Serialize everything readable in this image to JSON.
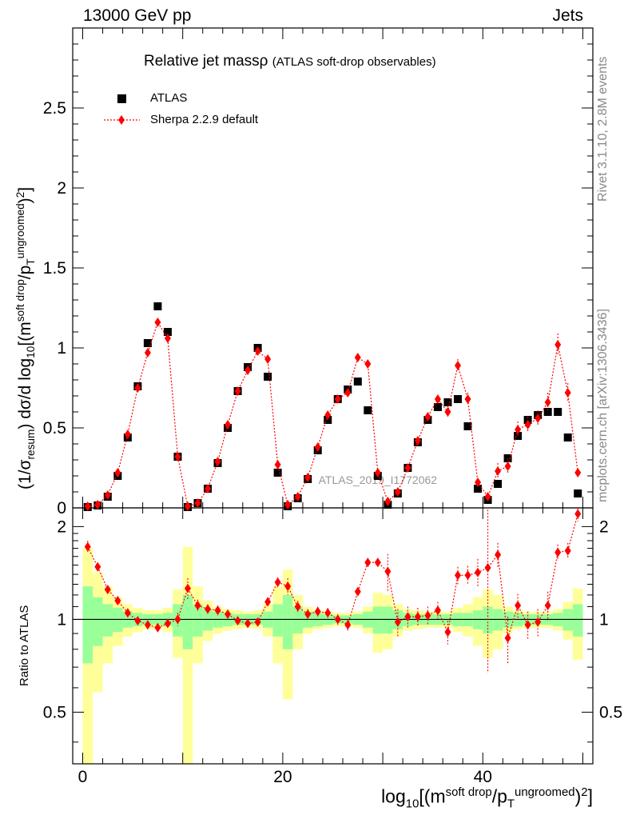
{
  "header": {
    "energy_label": "13000 GeV pp",
    "process_label": "Jets"
  },
  "side_labels": {
    "rivet": "Rivet 3.1.10,  2.8M events",
    "mcplots": "mcplots.cern.ch [arXiv:1306.3436]"
  },
  "watermark": "ATLAS_2019_I1772062",
  "chart_data": {
    "type": "scatter",
    "title": "Relative jet massρ",
    "subtitle": "(ATLAS soft-drop observables)",
    "ylabel_parts": {
      "a": "(1/σ",
      "a_sub": "resum",
      "b": ") dσ/d log",
      "b_sub": "10",
      "c": "[(m",
      "c_sup": "soft drop",
      "d": "/p",
      "d_sub": "T",
      "d_sup": "ungroomed",
      "e": ")",
      "e_sup": "2",
      "f": "]"
    },
    "xlabel_parts": {
      "a": "log",
      "a_sub": "10",
      "b": "[(m",
      "b_sup": "soft drop",
      "c": "/p",
      "c_sub": "T",
      "c_sup": "ungroomed",
      "d": ")",
      "d_sup": "2",
      "e": "]"
    },
    "ratio_ylabel": "Ratio to ATLAS",
    "xlim": [
      -1,
      51
    ],
    "ylim": [
      0,
      3.0
    ],
    "ratio_ylim": [
      0.34,
      2.3
    ],
    "x_ticks": [
      "0",
      "20",
      "40"
    ],
    "y_ticks": [
      "0",
      "0.5",
      "1",
      "1.5",
      "2",
      "2.5"
    ],
    "ratio_ticks": [
      "0.5",
      "1",
      "2"
    ],
    "legend": {
      "data_label": "ATLAS",
      "mc_label": "Sherpa 2.2.9 default",
      "position": "top-left"
    },
    "colors": {
      "data": "#000000",
      "mc": "#ff0000",
      "band_inner": "#99ff99",
      "band_outer": "#ffff99"
    },
    "x": [
      0.5,
      1.5,
      2.5,
      3.5,
      4.5,
      5.5,
      6.5,
      7.5,
      8.5,
      9.5,
      10.5,
      11.5,
      12.5,
      13.5,
      14.5,
      15.5,
      16.5,
      17.5,
      18.5,
      19.5,
      20.5,
      21.5,
      22.5,
      23.5,
      24.5,
      25.5,
      26.5,
      27.5,
      28.5,
      29.5,
      30.5,
      31.5,
      32.5,
      33.5,
      34.5,
      35.5,
      36.5,
      37.5,
      38.5,
      39.5,
      40.5,
      41.5,
      42.5,
      43.5,
      44.5,
      45.5,
      46.5,
      47.5,
      48.5,
      49.5
    ],
    "series": [
      {
        "name": "ATLAS",
        "values": [
          0.005,
          0.015,
          0.07,
          0.2,
          0.44,
          0.76,
          1.03,
          1.26,
          1.1,
          0.32,
          0.005,
          0.03,
          0.12,
          0.28,
          0.5,
          0.73,
          0.88,
          1.0,
          0.82,
          0.22,
          0.01,
          0.06,
          0.18,
          0.36,
          0.55,
          0.68,
          0.74,
          0.79,
          0.61,
          0.2,
          0.02,
          0.09,
          0.25,
          0.41,
          0.55,
          0.63,
          0.66,
          0.68,
          0.51,
          0.12,
          0.05,
          0.15,
          0.31,
          0.45,
          0.55,
          0.58,
          0.6,
          0.6,
          0.44,
          0.09
        ]
      },
      {
        "name": "Sherpa 2.2.9 default",
        "values": [
          0.01,
          0.02,
          0.08,
          0.22,
          0.46,
          0.75,
          0.97,
          1.16,
          1.06,
          0.32,
          0.01,
          0.03,
          0.12,
          0.29,
          0.52,
          0.73,
          0.86,
          0.98,
          0.93,
          0.27,
          0.02,
          0.07,
          0.19,
          0.38,
          0.58,
          0.68,
          0.72,
          0.94,
          0.9,
          0.22,
          0.04,
          0.1,
          0.25,
          0.42,
          0.57,
          0.68,
          0.6,
          0.89,
          0.68,
          0.16,
          0.07,
          0.23,
          0.26,
          0.49,
          0.52,
          0.56,
          0.66,
          1.02,
          0.72,
          0.22
        ],
        "errors": [
          0.003,
          0.004,
          0.01,
          0.01,
          0.015,
          0.02,
          0.02,
          0.025,
          0.025,
          0.015,
          0.002,
          0.004,
          0.01,
          0.012,
          0.015,
          0.02,
          0.02,
          0.02,
          0.02,
          0.012,
          0.003,
          0.006,
          0.01,
          0.015,
          0.02,
          0.02,
          0.02,
          0.025,
          0.025,
          0.015,
          0.004,
          0.01,
          0.015,
          0.02,
          0.03,
          0.03,
          0.04,
          0.04,
          0.04,
          0.03,
          0.02,
          0.05,
          0.05,
          0.05,
          0.05,
          0.05,
          0.06,
          0.07,
          0.06,
          0.03
        ]
      }
    ],
    "ratio": {
      "values": [
        1.72,
        1.48,
        1.25,
        1.15,
        1.05,
        0.99,
        0.96,
        0.94,
        0.97,
        1.0,
        1.26,
        1.11,
        1.08,
        1.07,
        1.04,
        0.99,
        0.97,
        0.98,
        1.14,
        1.32,
        1.28,
        1.1,
        1.04,
        1.06,
        1.05,
        1.0,
        0.96,
        1.23,
        1.53,
        1.53,
        1.43,
        0.98,
        1.02,
        1.02,
        1.03,
        1.07,
        0.91,
        1.39,
        1.39,
        1.42,
        1.47,
        1.62,
        0.87,
        1.11,
        0.96,
        0.98,
        1.11,
        1.65,
        1.67,
        2.2
      ],
      "err": [
        0.08,
        0.05,
        0.04,
        0.03,
        0.03,
        0.03,
        0.03,
        0.03,
        0.03,
        0.05,
        0.1,
        0.05,
        0.04,
        0.04,
        0.03,
        0.03,
        0.03,
        0.03,
        0.04,
        0.05,
        0.08,
        0.05,
        0.04,
        0.04,
        0.04,
        0.04,
        0.04,
        0.04,
        0.05,
        0.05,
        0.2,
        0.1,
        0.08,
        0.07,
        0.07,
        0.07,
        0.08,
        0.09,
        0.1,
        0.15,
        0.8,
        0.15,
        0.15,
        0.1,
        0.1,
        0.1,
        0.12,
        0.1,
        0.1,
        0.12
      ],
      "band_inner": [
        0.28,
        0.18,
        0.12,
        0.09,
        0.06,
        0.05,
        0.04,
        0.04,
        0.05,
        0.12,
        0.2,
        0.12,
        0.08,
        0.06,
        0.05,
        0.04,
        0.04,
        0.04,
        0.06,
        0.12,
        0.2,
        0.1,
        0.06,
        0.05,
        0.04,
        0.03,
        0.03,
        0.04,
        0.06,
        0.1,
        0.1,
        0.07,
        0.05,
        0.04,
        0.04,
        0.04,
        0.04,
        0.05,
        0.05,
        0.07,
        0.1,
        0.08,
        0.06,
        0.05,
        0.04,
        0.04,
        0.04,
        0.05,
        0.08,
        0.12
      ],
      "band_outer": [
        0.7,
        0.42,
        0.28,
        0.18,
        0.12,
        0.09,
        0.07,
        0.07,
        0.09,
        0.25,
        0.72,
        0.28,
        0.15,
        0.1,
        0.08,
        0.07,
        0.06,
        0.07,
        0.12,
        0.28,
        0.45,
        0.2,
        0.1,
        0.07,
        0.06,
        0.05,
        0.05,
        0.06,
        0.1,
        0.22,
        0.2,
        0.12,
        0.08,
        0.07,
        0.06,
        0.06,
        0.06,
        0.09,
        0.12,
        0.18,
        0.25,
        0.2,
        0.1,
        0.07,
        0.06,
        0.06,
        0.06,
        0.08,
        0.14,
        0.26
      ]
    }
  }
}
